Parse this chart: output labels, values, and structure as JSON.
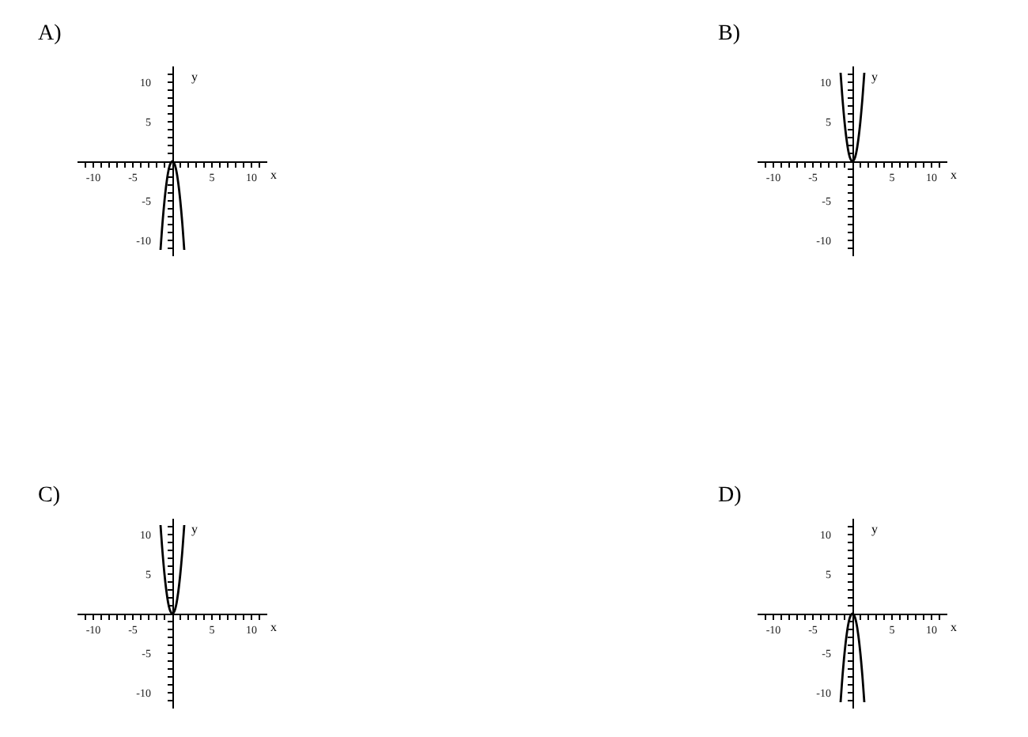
{
  "chart_data": [
    {
      "type": "line",
      "title": "A)",
      "xlabel": "x",
      "ylabel": "y",
      "color": "#000000",
      "x": [
        -1.5,
        -1.25,
        -1,
        -0.75,
        -0.5,
        -0.25,
        0,
        0.25,
        0.5,
        0.75,
        1,
        1.25,
        1.5
      ],
      "values": [
        -11.2,
        -7.8,
        -5,
        -2.8,
        -1.2,
        -0.3,
        0,
        -0.3,
        -1.2,
        -2.8,
        -5,
        -7.8,
        -11.2
      ],
      "xlim": [
        -12,
        12
      ],
      "ylim": [
        -12,
        12
      ],
      "xticks": [
        {
          "value": -11,
          "label": null
        },
        -10,
        {
          "value": -9,
          "label": null
        },
        {
          "value": -8,
          "label": null
        },
        {
          "value": -7,
          "label": null
        },
        {
          "value": -6,
          "label": null
        },
        -5,
        {
          "value": -4,
          "label": null
        },
        {
          "value": -3,
          "label": null
        },
        {
          "value": -2,
          "label": null
        },
        {
          "value": -1,
          "label": null
        },
        {
          "value": 1,
          "label": null
        },
        {
          "value": 2,
          "label": null
        },
        {
          "value": 3,
          "label": null
        },
        {
          "value": 4,
          "label": null
        },
        5,
        {
          "value": 6,
          "label": null
        },
        {
          "value": 7,
          "label": null
        },
        {
          "value": 8,
          "label": null
        },
        {
          "value": 9,
          "label": null
        },
        10,
        {
          "value": 11,
          "label": null
        }
      ],
      "yticks": [
        {
          "value": -11,
          "label": null
        },
        -10,
        {
          "value": -9,
          "label": null
        },
        {
          "value": -8,
          "label": null
        },
        {
          "value": -7,
          "label": null
        },
        {
          "value": -6,
          "label": null
        },
        -5,
        {
          "value": -4,
          "label": null
        },
        {
          "value": -3,
          "label": null
        },
        {
          "value": -2,
          "label": null
        },
        {
          "value": -1,
          "label": null
        },
        {
          "value": 1,
          "label": null
        },
        {
          "value": 2,
          "label": null
        },
        {
          "value": 3,
          "label": null
        },
        {
          "value": 4,
          "label": null
        },
        5,
        {
          "value": 6,
          "label": null
        },
        {
          "value": 7,
          "label": null
        },
        {
          "value": 8,
          "label": null
        },
        {
          "value": 9,
          "label": null
        },
        10,
        {
          "value": 11,
          "label": null
        }
      ]
    },
    {
      "type": "line",
      "title": "B)",
      "xlabel": "x",
      "ylabel": "y",
      "color": "#000000",
      "x": [
        -1.5,
        -1.25,
        -1,
        -0.75,
        -0.5,
        -0.25,
        0,
        0.25,
        0.5,
        0.75,
        1,
        1.25,
        1.5
      ],
      "values": [
        11.2,
        7.8,
        5,
        2.8,
        1.2,
        0.3,
        0,
        0.3,
        1.2,
        2.8,
        5,
        7.8,
        11.2
      ],
      "xlim": [
        -12,
        12
      ],
      "ylim": [
        -12,
        12
      ],
      "xticks": [
        {
          "value": -11,
          "label": null
        },
        -10,
        {
          "value": -9,
          "label": null
        },
        {
          "value": -8,
          "label": null
        },
        {
          "value": -7,
          "label": null
        },
        {
          "value": -6,
          "label": null
        },
        -5,
        {
          "value": -4,
          "label": null
        },
        {
          "value": -3,
          "label": null
        },
        {
          "value": -2,
          "label": null
        },
        {
          "value": -1,
          "label": null
        },
        {
          "value": 1,
          "label": null
        },
        {
          "value": 2,
          "label": null
        },
        {
          "value": 3,
          "label": null
        },
        {
          "value": 4,
          "label": null
        },
        5,
        {
          "value": 6,
          "label": null
        },
        {
          "value": 7,
          "label": null
        },
        {
          "value": 8,
          "label": null
        },
        {
          "value": 9,
          "label": null
        },
        10,
        {
          "value": 11,
          "label": null
        }
      ],
      "yticks": [
        {
          "value": -11,
          "label": null
        },
        -10,
        {
          "value": -9,
          "label": null
        },
        {
          "value": -8,
          "label": null
        },
        {
          "value": -7,
          "label": null
        },
        {
          "value": -6,
          "label": null
        },
        -5,
        {
          "value": -4,
          "label": null
        },
        {
          "value": -3,
          "label": null
        },
        {
          "value": -2,
          "label": null
        },
        {
          "value": -1,
          "label": null
        },
        {
          "value": 1,
          "label": null
        },
        {
          "value": 2,
          "label": null
        },
        {
          "value": 3,
          "label": null
        },
        {
          "value": 4,
          "label": null
        },
        5,
        {
          "value": 6,
          "label": null
        },
        {
          "value": 7,
          "label": null
        },
        {
          "value": 8,
          "label": null
        },
        {
          "value": 9,
          "label": null
        },
        10,
        {
          "value": 11,
          "label": null
        }
      ]
    },
    {
      "type": "line",
      "title": "C)",
      "xlabel": "x",
      "ylabel": "y",
      "color": "#000000",
      "x": [
        -1.5,
        -1.25,
        -1,
        -0.75,
        -0.5,
        -0.25,
        0,
        0.25,
        0.5,
        0.75,
        1,
        1.25,
        1.5
      ],
      "values": [
        11.2,
        7.8,
        5,
        2.8,
        1.2,
        0.3,
        0,
        0.3,
        1.2,
        2.8,
        5,
        7.8,
        11.2
      ],
      "xlim": [
        -12,
        12
      ],
      "ylim": [
        -12,
        12
      ],
      "xticks": [
        {
          "value": -11,
          "label": null
        },
        -10,
        {
          "value": -9,
          "label": null
        },
        {
          "value": -8,
          "label": null
        },
        {
          "value": -7,
          "label": null
        },
        {
          "value": -6,
          "label": null
        },
        -5,
        {
          "value": -4,
          "label": null
        },
        {
          "value": -3,
          "label": null
        },
        {
          "value": -2,
          "label": null
        },
        {
          "value": -1,
          "label": null
        },
        {
          "value": 1,
          "label": null
        },
        {
          "value": 2,
          "label": null
        },
        {
          "value": 3,
          "label": null
        },
        {
          "value": 4,
          "label": null
        },
        5,
        {
          "value": 6,
          "label": null
        },
        {
          "value": 7,
          "label": null
        },
        {
          "value": 8,
          "label": null
        },
        {
          "value": 9,
          "label": null
        },
        10,
        {
          "value": 11,
          "label": null
        }
      ],
      "yticks": [
        {
          "value": -11,
          "label": null
        },
        -10,
        {
          "value": -9,
          "label": null
        },
        {
          "value": -8,
          "label": null
        },
        {
          "value": -7,
          "label": null
        },
        {
          "value": -6,
          "label": null
        },
        -5,
        {
          "value": -4,
          "label": null
        },
        {
          "value": -3,
          "label": null
        },
        {
          "value": -2,
          "label": null
        },
        {
          "value": -1,
          "label": null
        },
        {
          "value": 1,
          "label": null
        },
        {
          "value": 2,
          "label": null
        },
        {
          "value": 3,
          "label": null
        },
        {
          "value": 4,
          "label": null
        },
        5,
        {
          "value": 6,
          "label": null
        },
        {
          "value": 7,
          "label": null
        },
        {
          "value": 8,
          "label": null
        },
        {
          "value": 9,
          "label": null
        },
        10,
        {
          "value": 11,
          "label": null
        }
      ]
    },
    {
      "type": "line",
      "title": "D)",
      "xlabel": "x",
      "ylabel": "y",
      "color": "#000000",
      "x": [
        -1.5,
        -1.25,
        -1,
        -0.75,
        -0.5,
        -0.25,
        0,
        0.25,
        0.5,
        0.75,
        1,
        1.25,
        1.5
      ],
      "values": [
        -11.2,
        -7.8,
        -5,
        -2.8,
        -1.2,
        -0.3,
        0,
        -0.3,
        -1.2,
        -2.8,
        -5,
        -7.8,
        -11.2
      ],
      "xlim": [
        -12,
        12
      ],
      "ylim": [
        -12,
        12
      ],
      "xticks": [
        {
          "value": -11,
          "label": null
        },
        -10,
        {
          "value": -9,
          "label": null
        },
        {
          "value": -8,
          "label": null
        },
        {
          "value": -7,
          "label": null
        },
        {
          "value": -6,
          "label": null
        },
        -5,
        {
          "value": -4,
          "label": null
        },
        {
          "value": -3,
          "label": null
        },
        {
          "value": -2,
          "label": null
        },
        {
          "value": -1,
          "label": null
        },
        {
          "value": 1,
          "label": null
        },
        {
          "value": 2,
          "label": null
        },
        {
          "value": 3,
          "label": null
        },
        {
          "value": 4,
          "label": null
        },
        5,
        {
          "value": 6,
          "label": null
        },
        {
          "value": 7,
          "label": null
        },
        {
          "value": 8,
          "label": null
        },
        {
          "value": 9,
          "label": null
        },
        10,
        {
          "value": 11,
          "label": null
        }
      ],
      "yticks": [
        {
          "value": -11,
          "label": null
        },
        -10,
        {
          "value": -9,
          "label": null
        },
        {
          "value": -8,
          "label": null
        },
        {
          "value": -7,
          "label": null
        },
        {
          "value": -6,
          "label": null
        },
        -5,
        {
          "value": -4,
          "label": null
        },
        {
          "value": -3,
          "label": null
        },
        {
          "value": -2,
          "label": null
        },
        {
          "value": -1,
          "label": null
        },
        {
          "value": 1,
          "label": null
        },
        {
          "value": 2,
          "label": null
        },
        {
          "value": 3,
          "label": null
        },
        {
          "value": 4,
          "label": null
        },
        5,
        {
          "value": 6,
          "label": null
        },
        {
          "value": 7,
          "label": null
        },
        {
          "value": 8,
          "label": null
        },
        {
          "value": 9,
          "label": null
        },
        10,
        {
          "value": 11,
          "label": null
        }
      ]
    }
  ]
}
